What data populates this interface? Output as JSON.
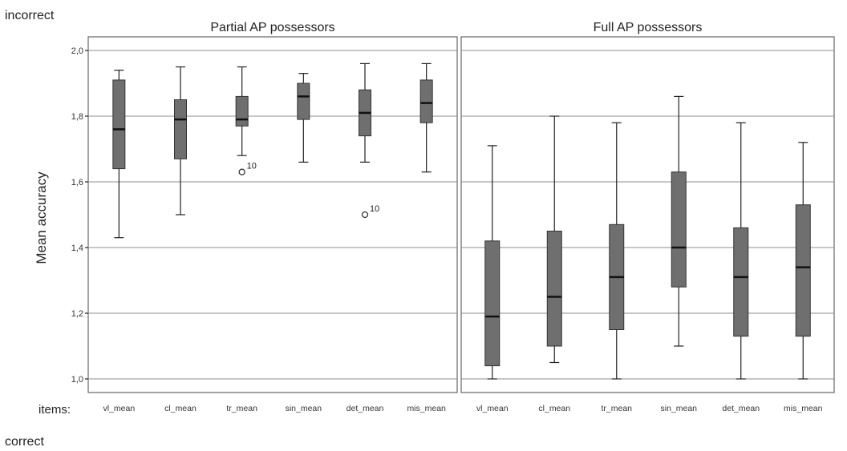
{
  "labels": {
    "top": "incorrect",
    "bottom": "correct",
    "items": "items:"
  },
  "chart_data": {
    "type": "boxplot",
    "ylabel": "Mean accuracy",
    "ylim": [
      1.0,
      2.0
    ],
    "yticks": [
      "1,0",
      "1,2",
      "1,4",
      "1,6",
      "1,8",
      "2,0"
    ],
    "grid": true,
    "categories": [
      "vl_mean",
      "cl_mean",
      "tr_mean",
      "sin_mean",
      "det_mean",
      "mis_mean"
    ],
    "panels": [
      {
        "title": "Partial AP possessors",
        "boxes": [
          {
            "min": 1.43,
            "q1": 1.64,
            "median": 1.76,
            "q3": 1.91,
            "max": 1.94
          },
          {
            "min": 1.5,
            "q1": 1.67,
            "median": 1.79,
            "q3": 1.85,
            "max": 1.95
          },
          {
            "min": 1.68,
            "q1": 1.77,
            "median": 1.79,
            "q3": 1.86,
            "max": 1.95
          },
          {
            "min": 1.66,
            "q1": 1.79,
            "median": 1.86,
            "q3": 1.9,
            "max": 1.93
          },
          {
            "min": 1.66,
            "q1": 1.74,
            "median": 1.81,
            "q3": 1.88,
            "max": 1.96
          },
          {
            "min": 1.63,
            "q1": 1.78,
            "median": 1.84,
            "q3": 1.91,
            "max": 1.96
          }
        ],
        "outliers": [
          {
            "category": "tr_mean",
            "value": 1.63,
            "label": "10"
          },
          {
            "category": "det_mean",
            "value": 1.5,
            "label": "10"
          }
        ]
      },
      {
        "title": "Full AP possessors",
        "boxes": [
          {
            "min": 1.0,
            "q1": 1.04,
            "median": 1.19,
            "q3": 1.42,
            "max": 1.71
          },
          {
            "min": 1.05,
            "q1": 1.1,
            "median": 1.25,
            "q3": 1.45,
            "max": 1.8
          },
          {
            "min": 1.0,
            "q1": 1.15,
            "median": 1.31,
            "q3": 1.47,
            "max": 1.78
          },
          {
            "min": 1.1,
            "q1": 1.28,
            "median": 1.4,
            "q3": 1.63,
            "max": 1.86
          },
          {
            "min": 1.0,
            "q1": 1.13,
            "median": 1.31,
            "q3": 1.46,
            "max": 1.78
          },
          {
            "min": 1.0,
            "q1": 1.13,
            "median": 1.34,
            "q3": 1.53,
            "max": 1.72
          }
        ],
        "outliers": []
      }
    ]
  }
}
